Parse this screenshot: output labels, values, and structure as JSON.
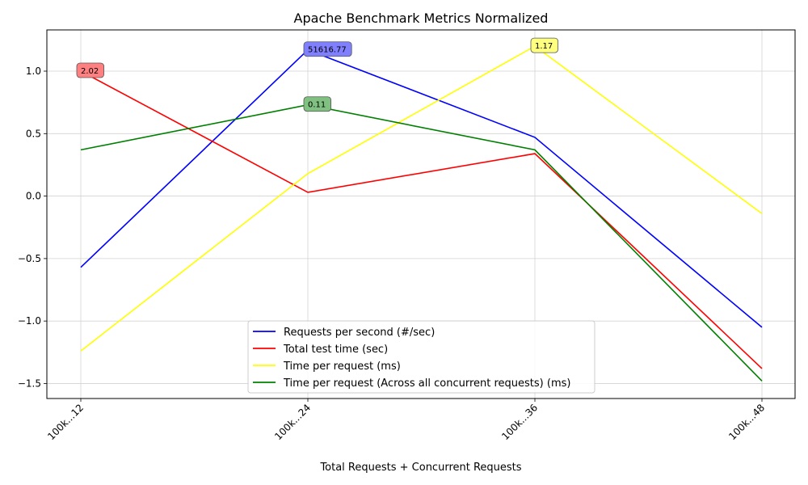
{
  "chart_data": {
    "type": "line",
    "title": "Apache Benchmark Metrics Normalized",
    "xlabel": "Total Requests + Concurrent Requests",
    "ylabel": "",
    "categories": [
      "100k...12",
      "100k...24",
      "100k...36",
      "100k...48"
    ],
    "ylim": [
      -1.62,
      1.33
    ],
    "yticks": [
      -1.5,
      -1.0,
      -0.5,
      0.0,
      0.5,
      1.0
    ],
    "yticklabels": [
      "−1.5",
      "−1.0",
      "−0.5",
      "0.0",
      "0.5",
      "1.0"
    ],
    "grid": true,
    "legend_position": "lower-center",
    "series": [
      {
        "name": "Requests per second (#/sec)",
        "color": "#0000ff",
        "values": [
          -0.57,
          1.17,
          0.47,
          -1.05
        ]
      },
      {
        "name": "Total test time (sec)",
        "color": "#ff0000",
        "values": [
          1.0,
          0.03,
          0.34,
          -1.38
        ]
      },
      {
        "name": "Time per request (ms)",
        "color": "#ffff00",
        "values": [
          -1.24,
          0.18,
          1.2,
          -0.14
        ]
      },
      {
        "name": "Time per request (Across all concurrent requests) (ms)",
        "color": "#008000",
        "values": [
          0.37,
          0.73,
          0.37,
          -1.48
        ]
      }
    ],
    "annotations": [
      {
        "series": 0,
        "index": 1,
        "text": "51616.77",
        "bg": "#8080ff"
      },
      {
        "series": 1,
        "index": 0,
        "text": "2.02",
        "bg": "#ff8080"
      },
      {
        "series": 2,
        "index": 2,
        "text": "1.17",
        "bg": "#ffff80"
      },
      {
        "series": 3,
        "index": 1,
        "text": "0.11",
        "bg": "#80c080"
      }
    ]
  }
}
